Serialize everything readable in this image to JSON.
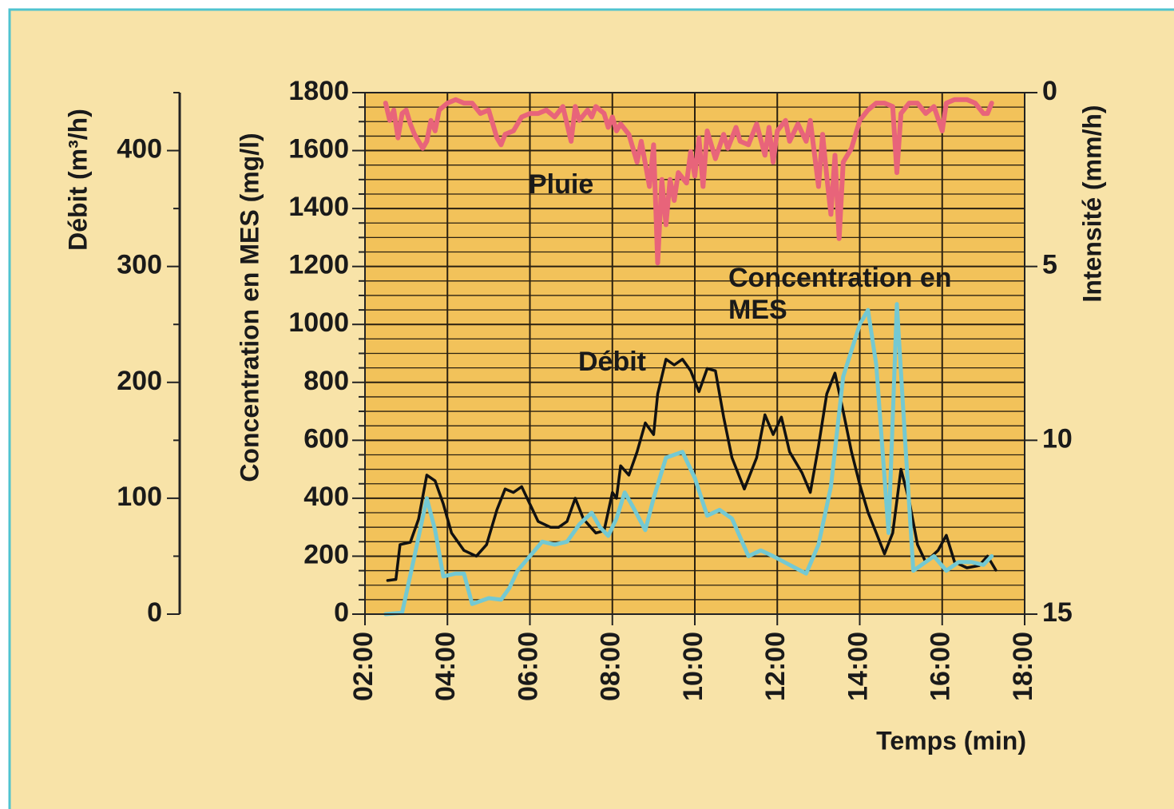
{
  "chart_data": {
    "type": "line",
    "x_label": "Temps (min)",
    "y_label": "Concentration en MES (mg/l)",
    "y2_label": "Intensité (mm/h)",
    "y3_label": "Débit (m³/h)",
    "xlim": [
      2,
      18
    ],
    "xticks": [
      {
        "value": 2,
        "label": "02:00"
      },
      {
        "value": 4,
        "label": "04:00"
      },
      {
        "value": 6,
        "label": "06:00"
      },
      {
        "value": 8,
        "label": "08:00"
      },
      {
        "value": 10,
        "label": "10:00"
      },
      {
        "value": 12,
        "label": "12:00"
      },
      {
        "value": 14,
        "label": "14:00"
      },
      {
        "value": 16,
        "label": "16:00"
      },
      {
        "value": 18,
        "label": "18:00"
      }
    ],
    "ylim": [
      0,
      1800
    ],
    "yticks": [
      0,
      200,
      400,
      600,
      800,
      1000,
      1200,
      1400,
      1600,
      1800
    ],
    "yminorticks": [
      50,
      100,
      150,
      250,
      300,
      350,
      450,
      500,
      550,
      650,
      700,
      750,
      850,
      900,
      950,
      1050,
      1100,
      1150,
      1250,
      1300,
      1350,
      1450,
      1500,
      1550,
      1650,
      1700,
      1750
    ],
    "y2lim": [
      15,
      0
    ],
    "y2ticks": [
      0,
      5,
      10,
      15
    ],
    "y3lim": [
      0,
      450
    ],
    "y3ticks": [
      0,
      100,
      200,
      300,
      400
    ],
    "y3minorticks": [
      50,
      150,
      250,
      350,
      450
    ],
    "grid": true,
    "series": [
      {
        "name": "Débit",
        "color": "#111111",
        "axis": "y3",
        "x": [
          2.55,
          2.75,
          2.85,
          3.1,
          3.3,
          3.5,
          3.7,
          3.9,
          4.1,
          4.4,
          4.7,
          4.95,
          5.2,
          5.4,
          5.6,
          5.8,
          6.0,
          6.2,
          6.5,
          6.7,
          6.9,
          7.1,
          7.3,
          7.6,
          7.8,
          8.0,
          8.1,
          8.2,
          8.4,
          8.6,
          8.8,
          9.0,
          9.1,
          9.3,
          9.5,
          9.7,
          9.9,
          10.1,
          10.3,
          10.5,
          10.7,
          10.9,
          11.2,
          11.5,
          11.7,
          11.9,
          12.1,
          12.3,
          12.6,
          12.8,
          13.0,
          13.2,
          13.4,
          13.6,
          13.8,
          14.0,
          14.2,
          14.4,
          14.6,
          14.8,
          15.0,
          15.2,
          15.4,
          15.6,
          15.9,
          16.1,
          16.3,
          16.6,
          16.9,
          17.1,
          17.3
        ],
        "values": [
          29,
          30,
          60,
          62,
          82,
          120,
          115,
          95,
          70,
          55,
          50,
          60,
          90,
          108,
          105,
          110,
          95,
          80,
          75,
          75,
          80,
          100,
          82,
          70,
          72,
          105,
          100,
          128,
          120,
          140,
          165,
          155,
          190,
          220,
          215,
          220,
          210,
          192,
          212,
          210,
          170,
          135,
          108,
          135,
          172,
          155,
          170,
          140,
          122,
          105,
          145,
          190,
          208,
          175,
          140,
          112,
          88,
          70,
          52,
          70,
          125,
          98,
          60,
          45,
          55,
          68,
          45,
          40,
          42,
          50,
          38
        ]
      },
      {
        "name": "Concentration en MES",
        "color": "#74c9d2",
        "axis": "y",
        "x": [
          2.5,
          2.9,
          3.2,
          3.5,
          3.7,
          3.9,
          4.2,
          4.4,
          4.6,
          5.0,
          5.3,
          5.5,
          5.7,
          6.0,
          6.3,
          6.6,
          6.9,
          7.2,
          7.5,
          7.7,
          7.9,
          8.1,
          8.3,
          8.5,
          8.8,
          9.0,
          9.3,
          9.7,
          10.0,
          10.3,
          10.6,
          10.9,
          11.3,
          11.6,
          11.9,
          12.3,
          12.7,
          13.0,
          13.3,
          13.6,
          14.0,
          14.2,
          14.4,
          14.7,
          14.9,
          15.1,
          15.3,
          15.6,
          15.8,
          16.1,
          16.4,
          16.7,
          17.0,
          17.2
        ],
        "values": [
          0,
          5,
          200,
          400,
          290,
          130,
          140,
          140,
          35,
          55,
          50,
          90,
          150,
          200,
          250,
          240,
          250,
          310,
          350,
          300,
          270,
          330,
          420,
          370,
          290,
          400,
          540,
          560,
          470,
          340,
          360,
          330,
          200,
          220,
          200,
          170,
          140,
          240,
          440,
          820,
          1000,
          1050,
          860,
          280,
          1070,
          600,
          150,
          180,
          200,
          150,
          180,
          180,
          170,
          200
        ]
      },
      {
        "name": "Pluie",
        "color": "#e8647a",
        "axis": "y2",
        "x": [
          2.5,
          2.6,
          2.7,
          2.8,
          2.9,
          3.0,
          3.1,
          3.2,
          3.4,
          3.5,
          3.6,
          3.7,
          3.8,
          4.0,
          4.2,
          4.4,
          4.6,
          4.8,
          5.0,
          5.2,
          5.3,
          5.4,
          5.6,
          5.8,
          6.0,
          6.2,
          6.4,
          6.6,
          6.8,
          7.0,
          7.1,
          7.2,
          7.4,
          7.5,
          7.6,
          7.8,
          7.9,
          8.0,
          8.1,
          8.2,
          8.4,
          8.6,
          8.7,
          8.9,
          9.0,
          9.1,
          9.2,
          9.3,
          9.4,
          9.5,
          9.6,
          9.8,
          9.9,
          10.0,
          10.1,
          10.2,
          10.3,
          10.5,
          10.7,
          10.8,
          11.0,
          11.1,
          11.3,
          11.5,
          11.7,
          11.8,
          11.9,
          12.0,
          12.2,
          12.3,
          12.5,
          12.7,
          12.8,
          13.0,
          13.1,
          13.2,
          13.3,
          13.4,
          13.5,
          13.6,
          13.8,
          14.0,
          14.2,
          14.4,
          14.6,
          14.8,
          14.9,
          15.0,
          15.2,
          15.4,
          15.6,
          15.8,
          16.0,
          16.1,
          16.3,
          16.6,
          16.8,
          17.0,
          17.1,
          17.2
        ],
        "values": [
          0.3,
          0.8,
          0.5,
          1.3,
          0.6,
          0.5,
          0.9,
          1.2,
          1.6,
          1.4,
          0.8,
          1.1,
          0.5,
          0.3,
          0.2,
          0.3,
          0.3,
          0.6,
          0.5,
          1.3,
          1.5,
          1.2,
          1.1,
          0.7,
          0.6,
          0.6,
          0.5,
          0.7,
          0.4,
          1.4,
          0.4,
          0.8,
          0.5,
          0.7,
          0.4,
          0.6,
          1.0,
          0.7,
          1.1,
          0.9,
          1.2,
          2.0,
          1.4,
          2.7,
          1.5,
          4.9,
          2.5,
          3.8,
          2.5,
          3.1,
          2.3,
          2.6,
          1.7,
          2.4,
          1.3,
          2.7,
          1.1,
          1.9,
          1.2,
          1.6,
          1.0,
          1.4,
          1.5,
          0.9,
          1.8,
          1.0,
          2.0,
          1.1,
          0.8,
          1.4,
          0.9,
          1.4,
          0.8,
          2.7,
          1.2,
          2.4,
          3.5,
          1.8,
          4.2,
          2.0,
          1.6,
          0.8,
          0.5,
          0.3,
          0.3,
          0.4,
          2.3,
          0.6,
          0.3,
          0.3,
          0.6,
          0.4,
          1.1,
          0.3,
          0.2,
          0.2,
          0.3,
          0.6,
          0.6,
          0.3
        ]
      }
    ]
  }
}
